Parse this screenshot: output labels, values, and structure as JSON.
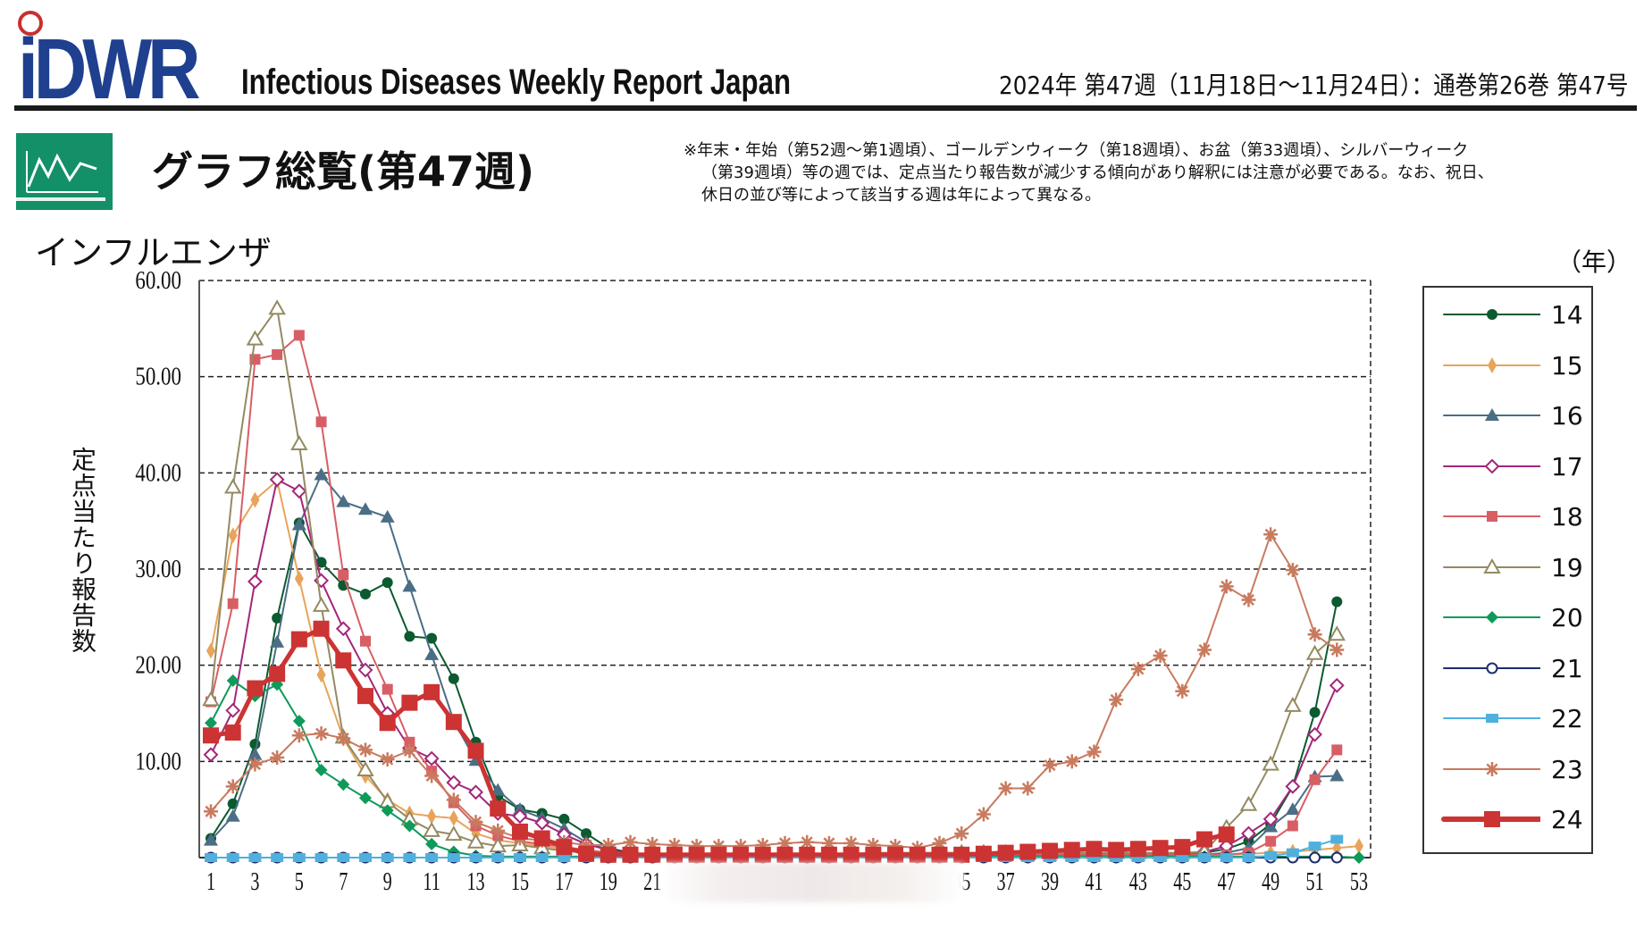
{
  "header": {
    "logo": "iDWR",
    "report_title": "Infectious Diseases Weekly Report Japan",
    "issue": "2024年 第47週（11月18日〜11月24日）：通巻第26巻 第47号"
  },
  "page_title": "グラフ総覧(第47週)",
  "note_lines": [
    "※年末・年始（第52週〜第1週頃）、ゴールデンウィーク（第18週頃）、お盆（第33週頃）、シルバーウィーク",
    "（第39週頃）等の週では、定点当たり報告数が減少する傾向があり解釈には注意が必要である。なお、祝日、",
    "休日の並び等によって該当する週は年によって異なる。"
  ],
  "chart_data": {
    "type": "line",
    "title": "インフルエンザ",
    "ylabel": "定点当たり報告数",
    "legend_title": "（年）",
    "legend_position": "right",
    "ylim": [
      0,
      60
    ],
    "yticks": [
      "10.00",
      "20.00",
      "30.00",
      "40.00",
      "50.00",
      "60.00"
    ],
    "xlim": [
      1,
      53
    ],
    "xticks": [
      "1",
      "3",
      "5",
      "7",
      "9",
      "11",
      "13",
      "15",
      "17",
      "19",
      "21",
      "35",
      "37",
      "39",
      "41",
      "43",
      "45",
      "47",
      "49",
      "51",
      "53"
    ],
    "grid": "horizontal dashed",
    "series": [
      {
        "name": "14",
        "color": "#0b5a30",
        "marker": "circle",
        "values": [
          2.0,
          5.6,
          11.8,
          24.9,
          34.8,
          30.7,
          28.3,
          27.4,
          28.6,
          23.0,
          22.8,
          18.6,
          12.0,
          6.4,
          5.0,
          4.6,
          4.0,
          2.5,
          1.0,
          0.5,
          0.3,
          0.2,
          0.2,
          0.2,
          0.2,
          0.2,
          0.2,
          0.2,
          0.2,
          0.2,
          0.2,
          0.2,
          0.2,
          0.2,
          0.2,
          0.2,
          0.2,
          0.2,
          0.2,
          0.2,
          0.3,
          0.3,
          0.3,
          0.3,
          0.4,
          0.5,
          0.9,
          1.7,
          3.5,
          7.4,
          15.1,
          26.6
        ]
      },
      {
        "name": "15",
        "color": "#e8a45a",
        "marker": "thin-diamond",
        "values": [
          21.5,
          33.5,
          37.2,
          39.2,
          29.0,
          19.0,
          12.4,
          8.5,
          6.0,
          4.6,
          4.3,
          4.1,
          2.5,
          1.8,
          1.5,
          1.2,
          0.9,
          0.6,
          0.4,
          0.3,
          0.3,
          0.3,
          0.3,
          0.3,
          0.3,
          0.3,
          0.3,
          0.3,
          0.3,
          0.3,
          0.3,
          0.3,
          0.3,
          0.3,
          0.3,
          0.3,
          0.3,
          0.3,
          0.3,
          0.3,
          0.3,
          0.3,
          0.3,
          0.3,
          0.3,
          0.3,
          0.3,
          0.4,
          0.5,
          0.6,
          0.8,
          1.0,
          1.2
        ]
      },
      {
        "name": "16",
        "color": "#4a6e85",
        "marker": "triangle",
        "values": [
          1.8,
          4.3,
          10.7,
          22.4,
          34.6,
          39.8,
          37.0,
          36.2,
          35.4,
          28.2,
          21.1,
          14.2,
          10.1,
          7.0,
          5.0,
          4.1,
          3.0,
          1.6,
          0.8,
          0.4,
          0.2,
          0.2,
          0.2,
          0.2,
          0.2,
          0.2,
          0.2,
          0.2,
          0.2,
          0.2,
          0.2,
          0.2,
          0.2,
          0.2,
          0.2,
          0.2,
          0.2,
          0.2,
          0.2,
          0.2,
          0.2,
          0.2,
          0.2,
          0.2,
          0.2,
          0.3,
          0.5,
          1.0,
          3.2,
          5.0,
          8.4,
          8.5
        ]
      },
      {
        "name": "17",
        "color": "#a3277a",
        "marker": "open-diamond",
        "values": [
          10.7,
          15.3,
          28.7,
          39.3,
          38.1,
          28.8,
          23.8,
          19.5,
          15.0,
          11.4,
          10.3,
          7.8,
          6.8,
          4.6,
          4.3,
          3.6,
          2.4,
          1.4,
          0.8,
          0.5,
          0.3,
          0.3,
          0.3,
          0.3,
          0.3,
          0.3,
          0.3,
          0.3,
          0.3,
          0.3,
          0.3,
          0.3,
          0.3,
          0.3,
          0.3,
          0.3,
          0.3,
          0.3,
          0.3,
          0.3,
          0.3,
          0.3,
          0.3,
          0.3,
          0.4,
          0.6,
          1.2,
          2.5,
          4.0,
          7.4,
          12.8,
          17.9
        ]
      },
      {
        "name": "18",
        "color": "#d85e66",
        "marker": "square",
        "values": [
          16.2,
          26.4,
          51.8,
          52.3,
          54.3,
          45.3,
          29.4,
          22.5,
          17.5,
          12.0,
          9.0,
          5.7,
          3.3,
          2.3,
          1.7,
          1.4,
          1.1,
          0.8,
          0.5,
          0.4,
          0.3,
          0.3,
          0.3,
          0.3,
          0.3,
          0.3,
          0.3,
          0.3,
          0.3,
          0.3,
          0.3,
          0.3,
          0.3,
          0.3,
          0.3,
          0.3,
          0.3,
          0.3,
          0.3,
          0.3,
          0.3,
          0.3,
          0.3,
          0.3,
          0.3,
          0.3,
          0.3,
          0.5,
          1.7,
          3.3,
          8.1,
          11.2
        ]
      },
      {
        "name": "19",
        "color": "#948a62",
        "marker": "open-triangle",
        "values": [
          16.4,
          38.5,
          53.9,
          57.1,
          43.0,
          26.2,
          12.5,
          9.1,
          5.8,
          4.0,
          2.8,
          2.4,
          1.6,
          1.2,
          1.3,
          1.0,
          0.7,
          0.5,
          0.4,
          0.4,
          0.4,
          0.4,
          0.4,
          0.4,
          0.4,
          0.4,
          0.4,
          0.4,
          0.4,
          0.4,
          0.5,
          0.5,
          0.5,
          0.5,
          0.5,
          0.5,
          0.5,
          0.5,
          0.5,
          0.5,
          0.5,
          0.5,
          0.5,
          0.5,
          0.5,
          0.6,
          3.1,
          5.5,
          9.7,
          15.8,
          21.2,
          23.2
        ]
      },
      {
        "name": "20",
        "color": "#0f9a5a",
        "marker": "diamond",
        "values": [
          14.0,
          18.4,
          16.8,
          18.0,
          14.2,
          9.1,
          7.6,
          6.2,
          4.9,
          3.3,
          1.4,
          0.6,
          0.2,
          0.1,
          0.1,
          0.1,
          0.1,
          0.1,
          0.1,
          0.1,
          0.1,
          0.1,
          0.1,
          0.1,
          0.1,
          0.1,
          0.1,
          0.1,
          0.1,
          0.1,
          0.1,
          0.1,
          0.1,
          0.1,
          0.1,
          0.1,
          0.1,
          0.1,
          0.1,
          0.1,
          0.1,
          0.1,
          0.1,
          0.1,
          0.1,
          0.1,
          0.1,
          0.1,
          0.1,
          0.1,
          0.1,
          0.1,
          0.0
        ]
      },
      {
        "name": "21",
        "color": "#1e2f6e",
        "marker": "open-circle",
        "values": [
          0,
          0,
          0,
          0,
          0,
          0,
          0,
          0,
          0,
          0,
          0,
          0,
          0,
          0,
          0,
          0,
          0,
          0,
          0,
          0,
          0,
          0,
          0,
          0,
          0,
          0,
          0,
          0,
          0,
          0,
          0,
          0,
          0,
          0,
          0,
          0,
          0,
          0,
          0,
          0,
          0,
          0,
          0,
          0,
          0,
          0,
          0,
          0,
          0,
          0,
          0,
          0
        ]
      },
      {
        "name": "22",
        "color": "#4fb0de",
        "marker": "wide-square",
        "values": [
          0,
          0,
          0,
          0,
          0,
          0,
          0,
          0,
          0,
          0,
          0,
          0,
          0,
          0,
          0,
          0,
          0,
          0,
          0,
          0,
          0,
          0,
          0,
          0,
          0,
          0,
          0,
          0,
          0,
          0,
          0,
          0,
          0,
          0,
          0,
          0,
          0,
          0,
          0,
          0,
          0,
          0,
          0,
          0,
          0,
          0,
          0,
          0,
          0.2,
          0.5,
          1.2,
          1.9
        ]
      },
      {
        "name": "23",
        "color": "#c97a5e",
        "marker": "asterisk",
        "values": [
          4.8,
          7.4,
          9.7,
          10.4,
          12.7,
          12.9,
          12.4,
          11.2,
          10.2,
          11.1,
          8.5,
          6.0,
          3.7,
          2.8,
          2.0,
          1.8,
          1.6,
          1.3,
          1.3,
          1.6,
          1.4,
          1.3,
          1.2,
          1.2,
          1.2,
          1.3,
          1.5,
          1.6,
          1.5,
          1.5,
          1.3,
          1.2,
          1.0,
          1.5,
          2.5,
          4.5,
          7.2,
          7.2,
          9.6,
          10.0,
          11.0,
          16.4,
          19.6,
          21.0,
          17.3,
          21.6,
          28.2,
          26.8,
          33.6,
          29.9,
          23.2,
          21.6
        ]
      },
      {
        "name": "24",
        "color": "#cc3333",
        "marker": "big-square",
        "values": [
          12.7,
          13.0,
          17.6,
          19.1,
          22.7,
          23.8,
          20.5,
          16.8,
          14.0,
          16.1,
          17.2,
          14.1,
          11.1,
          5.1,
          2.7,
          2.0,
          1.1,
          0.4,
          0.3,
          0.3,
          0.3,
          0.3,
          0.3,
          0.3,
          0.3,
          0.3,
          0.3,
          0.3,
          0.3,
          0.3,
          0.3,
          0.3,
          0.3,
          0.3,
          0.3,
          0.4,
          0.5,
          0.6,
          0.7,
          0.8,
          0.9,
          0.8,
          0.9,
          1.0,
          1.1,
          1.9,
          2.4
        ]
      }
    ]
  }
}
